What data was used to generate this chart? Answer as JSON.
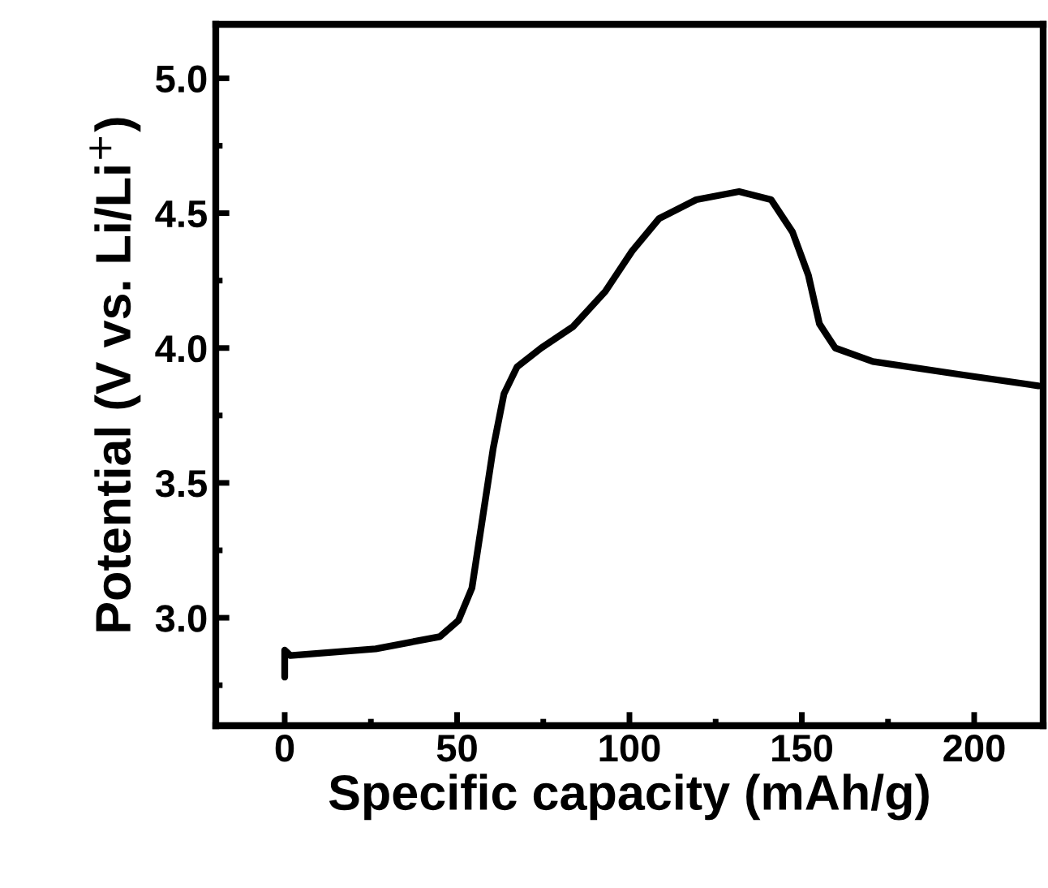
{
  "chart_data": {
    "type": "line",
    "xlabel": "Specific capacity (mAh/g)",
    "ylabel": "Potential (V vs. Li/Li$^{+}$)",
    "xlim": [
      -20,
      220
    ],
    "ylim": [
      2.6,
      5.2
    ],
    "xticks": [
      0,
      50,
      100,
      150,
      200
    ],
    "yticks": [
      {
        "value": 3.0,
        "label": "3.0"
      },
      {
        "value": 3.5,
        "label": "3.5"
      },
      {
        "value": 4.0,
        "label": "4.0"
      },
      {
        "value": 4.5,
        "label": "4.5"
      },
      {
        "value": 5.0,
        "label": "5.0"
      }
    ],
    "grid": false,
    "legend": false,
    "marker": "none",
    "line_style": "solid",
    "series": [
      {
        "color": "#000000",
        "x": [
          0,
          0,
          1.6,
          26.4,
          45,
          50.4,
          54.3,
          57.4,
          60.5,
          63.6,
          67.4,
          74.4,
          83.7,
          93,
          100.8,
          108.6,
          119.4,
          131.8,
          141.1,
          147.3,
          151.9,
          155.1,
          159.7,
          170.6,
          196.9,
          218.6
        ],
        "values": [
          2.78,
          2.88,
          2.86,
          2.885,
          2.93,
          2.99,
          3.11,
          3.37,
          3.63,
          3.83,
          3.93,
          4.0,
          4.08,
          4.21,
          4.36,
          4.48,
          4.55,
          4.58,
          4.55,
          4.43,
          4.27,
          4.09,
          4.0,
          3.95,
          3.9,
          3.86
        ]
      }
    ]
  }
}
